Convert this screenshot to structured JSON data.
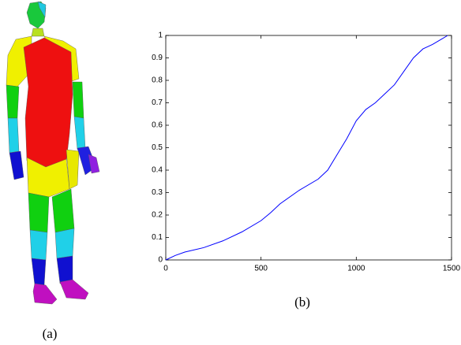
{
  "chart_data": {
    "type": "line",
    "x": [
      0,
      50,
      100,
      200,
      300,
      400,
      500,
      550,
      600,
      700,
      800,
      850,
      900,
      950,
      1000,
      1050,
      1100,
      1150,
      1200,
      1250,
      1300,
      1350,
      1400,
      1450,
      1480
    ],
    "series": [
      {
        "color": "#0000ff",
        "values": [
          0,
          0.02,
          0.035,
          0.055,
          0.085,
          0.125,
          0.175,
          0.21,
          0.25,
          0.31,
          0.36,
          0.4,
          0.47,
          0.54,
          0.62,
          0.67,
          0.7,
          0.74,
          0.78,
          0.84,
          0.9,
          0.94,
          0.96,
          0.985,
          1
        ]
      }
    ],
    "xlim": [
      0,
      1500
    ],
    "xticks": [
      0,
      500,
      1000,
      1500
    ],
    "ylim": [
      0,
      1
    ],
    "yticks": [
      0,
      0.1,
      0.2,
      0.3,
      0.4,
      0.5,
      0.6,
      0.7,
      0.8,
      0.9,
      1
    ],
    "grid": false
  },
  "panel_labels": [
    "(a)",
    "(b)"
  ]
}
